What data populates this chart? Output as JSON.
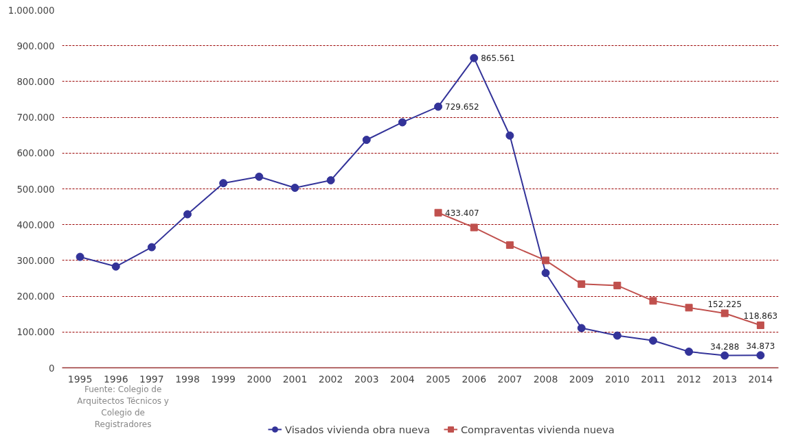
{
  "chart_data": {
    "type": "line",
    "categories": [
      "1995",
      "1996",
      "1997",
      "1998",
      "1999",
      "2000",
      "2001",
      "2002",
      "2003",
      "2004",
      "2005",
      "2006",
      "2007",
      "2008",
      "2009",
      "2010",
      "2011",
      "2012",
      "2013",
      "2014"
    ],
    "series": [
      {
        "name": "Visados vivienda obra nueva",
        "color": "#333399",
        "marker": "circle",
        "values": [
          310000,
          283000,
          337000,
          429000,
          516000,
          534000,
          503000,
          524000,
          637000,
          686000,
          729652,
          865561,
          649000,
          265000,
          111000,
          90000,
          76000,
          45000,
          34288,
          34873
        ],
        "value_labels": [
          null,
          null,
          null,
          null,
          null,
          null,
          null,
          null,
          null,
          null,
          "729.652",
          "865.561",
          null,
          null,
          null,
          null,
          null,
          null,
          "34.288",
          "34.873"
        ]
      },
      {
        "name": "Compraventas vivienda nueva",
        "color": "#c0504d",
        "marker": "square",
        "values": [
          null,
          null,
          null,
          null,
          null,
          null,
          null,
          null,
          null,
          null,
          433407,
          392000,
          343000,
          300000,
          234000,
          230000,
          187000,
          168000,
          152225,
          118863
        ],
        "value_labels": [
          null,
          null,
          null,
          null,
          null,
          null,
          null,
          null,
          null,
          null,
          "433.407",
          null,
          null,
          null,
          null,
          null,
          null,
          null,
          "152.225",
          "118.863"
        ]
      }
    ],
    "ylim": [
      0,
      1000000
    ],
    "yticks": [
      {
        "value": 0,
        "label": "0"
      },
      {
        "value": 100000,
        "label": "100.000"
      },
      {
        "value": 200000,
        "label": "200.000"
      },
      {
        "value": 300000,
        "label": "300.000"
      },
      {
        "value": 400000,
        "label": "400.000"
      },
      {
        "value": 500000,
        "label": "500.000"
      },
      {
        "value": 600000,
        "label": "600.000"
      },
      {
        "value": 700000,
        "label": "700.000"
      },
      {
        "value": 800000,
        "label": "800.000"
      },
      {
        "value": 900000,
        "label": "900.000"
      },
      {
        "value": 1000000,
        "label": "1.000.000"
      }
    ],
    "grid": "y",
    "legend": "bottom",
    "annotations": [
      "Fuente: Colegio de Arquitectos Técnicos y Colegio de Registradores"
    ]
  }
}
